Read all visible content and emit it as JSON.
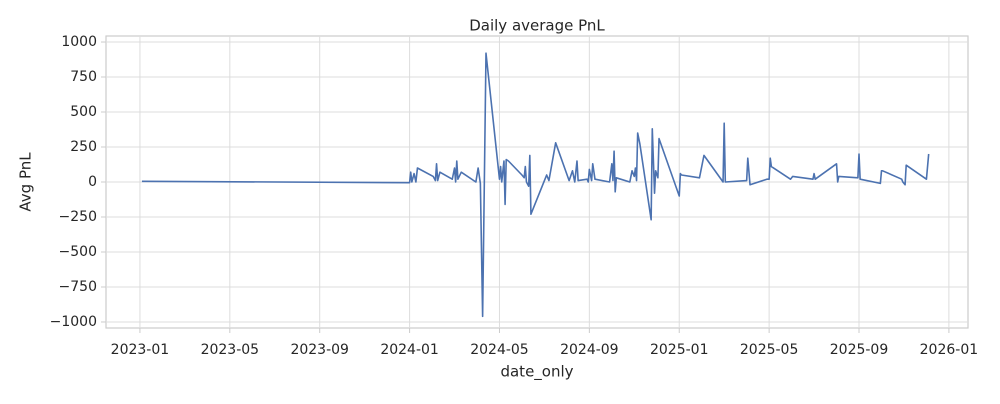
{
  "chart_data": {
    "type": "line",
    "title": "Daily average PnL",
    "x_label": "date_only",
    "y_label": "Avg PnL",
    "color": "#4c72b0",
    "grid": true,
    "x": [
      0.09,
      12.0,
      12.05,
      12.1,
      12.2,
      12.28,
      12.35,
      13.05,
      13.15,
      13.2,
      13.25,
      13.35,
      13.9,
      14.0,
      14.05,
      14.1,
      14.15,
      14.3,
      14.95,
      15.05,
      15.15,
      15.25,
      15.4,
      16.0,
      16.05,
      16.1,
      16.2,
      16.25,
      16.3,
      16.4,
      17.0,
      17.1,
      17.15,
      17.2,
      17.3,
      17.35,
      17.4,
      18.05,
      18.1,
      18.2,
      18.5,
      19.1,
      19.25,
      19.35,
      19.45,
      19.5,
      19.9,
      19.95,
      20.0,
      20.1,
      20.15,
      20.25,
      20.9,
      21.0,
      21.05,
      21.1,
      21.15,
      21.2,
      21.8,
      21.9,
      22.0,
      22.05,
      22.1,
      22.15,
      22.25,
      22.75,
      22.8,
      22.9,
      22.95,
      23.05,
      23.1,
      24.0,
      24.05,
      24.1,
      24.9,
      25.1,
      25.95,
      26.0,
      26.05,
      27.0,
      27.05,
      27.15,
      27.9,
      28.0,
      28.05,
      28.1,
      28.95,
      29.05,
      29.95,
      30.0,
      30.05,
      31.0,
      31.05,
      31.1,
      31.95,
      32.0,
      32.05,
      32.95,
      33.0,
      33.05,
      33.9,
      33.95,
      34.05,
      34.1,
      35.0,
      35.1
    ],
    "values": [
      5,
      -5,
      70,
      0,
      60,
      0,
      100,
      40,
      10,
      130,
      10,
      70,
      20,
      100,
      0,
      150,
      20,
      70,
      0,
      100,
      -10,
      -960,
      920,
      20,
      110,
      0,
      150,
      -160,
      160,
      150,
      50,
      30,
      110,
      0,
      -30,
      190,
      -230,
      30,
      50,
      10,
      280,
      10,
      80,
      0,
      150,
      10,
      20,
      0,
      90,
      10,
      130,
      20,
      0,
      130,
      10,
      220,
      -70,
      30,
      0,
      80,
      40,
      100,
      10,
      350,
      270,
      -270,
      380,
      -80,
      80,
      30,
      310,
      -100,
      60,
      50,
      30,
      190,
      0,
      420,
      0,
      10,
      170,
      -20,
      20,
      20,
      170,
      110,
      20,
      40,
      20,
      60,
      20,
      130,
      0,
      40,
      30,
      200,
      20,
      -10,
      80,
      80,
      20,
      0,
      -20,
      120,
      20,
      200
    ],
    "xlim": [
      -1.51,
      36.85
    ],
    "xticks": [
      {
        "value": 0,
        "label": "2023-01"
      },
      {
        "value": 4,
        "label": "2023-05"
      },
      {
        "value": 8,
        "label": "2023-09"
      },
      {
        "value": 12,
        "label": "2024-01"
      },
      {
        "value": 16,
        "label": "2024-05"
      },
      {
        "value": 20,
        "label": "2024-09"
      },
      {
        "value": 24,
        "label": "2025-01"
      },
      {
        "value": 28,
        "label": "2025-05"
      },
      {
        "value": 32,
        "label": "2025-09"
      },
      {
        "value": 36,
        "label": "2026-01"
      }
    ],
    "ylim": [
      -1043,
      1043
    ],
    "yticks": [
      {
        "value": -1000,
        "label": "−1000"
      },
      {
        "value": -750,
        "label": "−750"
      },
      {
        "value": -500,
        "label": "−500"
      },
      {
        "value": -250,
        "label": "−250"
      },
      0,
      250,
      500,
      750,
      1000
    ]
  }
}
